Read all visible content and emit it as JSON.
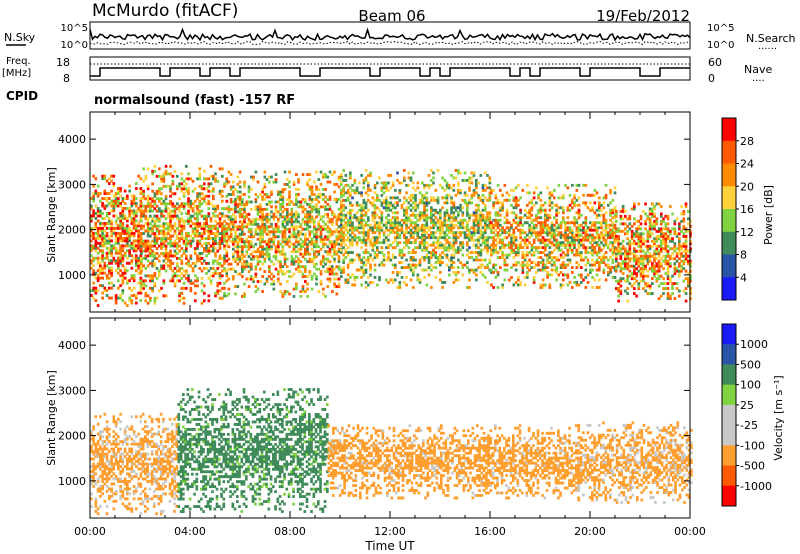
{
  "header": {
    "station": "McMurdo (fitACF)",
    "beam": "Beam 06",
    "date": "19/Feb/2012"
  },
  "noise_panel": {
    "left_label": "N.Sky",
    "left_ticks": [
      "10^5",
      "10^0"
    ],
    "right_label": "N.Search",
    "right_ticks": [
      "10^5",
      "10^0"
    ],
    "legend_line": "······"
  },
  "freq_panel": {
    "left_label_line1": "Freq.",
    "left_label_line2": "[MHz]",
    "left_ticks": [
      "18",
      "8"
    ],
    "right_label": "Nave",
    "right_ticks": [
      "60",
      "0"
    ],
    "legend_line": "····"
  },
  "cpid": {
    "label": "CPID",
    "text": "normalsound (fast) -157 RF"
  },
  "time_axis": {
    "label": "Time UT",
    "ticks": [
      "00:00",
      "04:00",
      "08:00",
      "12:00",
      "16:00",
      "20:00",
      "00:00"
    ]
  },
  "colors": {
    "power_scale": [
      "#1a1aff",
      "#2a55a6",
      "#3f8c5a",
      "#7fd240",
      "#ffd23c",
      "#ff8c00",
      "#ff5a00",
      "#ff0000"
    ],
    "velocity_scale": [
      "#ff0000",
      "#ff5a00",
      "#ff9f30",
      "#c8c8c8",
      "#c8c8c8",
      "#7fd240",
      "#3f8c5a",
      "#2a55a6",
      "#1a1aff"
    ]
  },
  "chart_data": [
    {
      "type": "heatmap",
      "title": "",
      "quantity": "power",
      "ylabel": "Slant Range [km]",
      "xlabel": "",
      "y_ticks": [
        1000,
        2000,
        3000,
        4000
      ],
      "ylim": [
        180,
        4600
      ],
      "xlim_hours": [
        0,
        24
      ],
      "colorbar": {
        "label": "Power [dB]",
        "ticks": [
          4,
          8,
          12,
          16,
          20,
          24,
          28
        ],
        "range": [
          0,
          32
        ]
      },
      "echo_bands": [
        {
          "t_start": 0.0,
          "t_end": 2.0,
          "range_low_km": 300,
          "range_high_km": 3200,
          "peak_db": 30
        },
        {
          "t_start": 2.0,
          "t_end": 5.5,
          "range_low_km": 350,
          "range_high_km": 3400,
          "peak_db": 28
        },
        {
          "t_start": 5.5,
          "t_end": 10.0,
          "range_low_km": 500,
          "range_high_km": 3300,
          "peak_db": 26
        },
        {
          "t_start": 10.0,
          "t_end": 16.0,
          "range_low_km": 700,
          "range_high_km": 3300,
          "peak_db": 22
        },
        {
          "t_start": 16.0,
          "t_end": 21.0,
          "range_low_km": 700,
          "range_high_km": 3000,
          "peak_db": 26
        },
        {
          "t_start": 21.0,
          "t_end": 24.0,
          "range_low_km": 400,
          "range_high_km": 2600,
          "peak_db": 28
        }
      ]
    },
    {
      "type": "heatmap",
      "title": "",
      "quantity": "velocity",
      "ylabel": "Slant Range [km]",
      "xlabel": "Time UT",
      "y_ticks": [
        1000,
        2000,
        3000,
        4000
      ],
      "ylim": [
        180,
        4600
      ],
      "xlim_hours": [
        0,
        24
      ],
      "colorbar": {
        "label": "Velocity [m s⁻¹]",
        "ticks": [
          1000,
          500,
          100,
          25,
          -25,
          -100,
          -500,
          -1000
        ]
      },
      "echo_bands": [
        {
          "t_start": 0.0,
          "t_end": 3.5,
          "range_low_km": 250,
          "range_high_km": 2500,
          "velocity": -150
        },
        {
          "t_start": 3.5,
          "t_end": 9.5,
          "range_low_km": 300,
          "range_high_km": 3000,
          "velocity": 200
        },
        {
          "t_start": 9.5,
          "t_end": 19.5,
          "range_low_km": 600,
          "range_high_km": 2200,
          "velocity": -200
        },
        {
          "t_start": 19.5,
          "t_end": 24.0,
          "range_low_km": 500,
          "range_high_km": 2300,
          "velocity": -150
        }
      ]
    }
  ]
}
